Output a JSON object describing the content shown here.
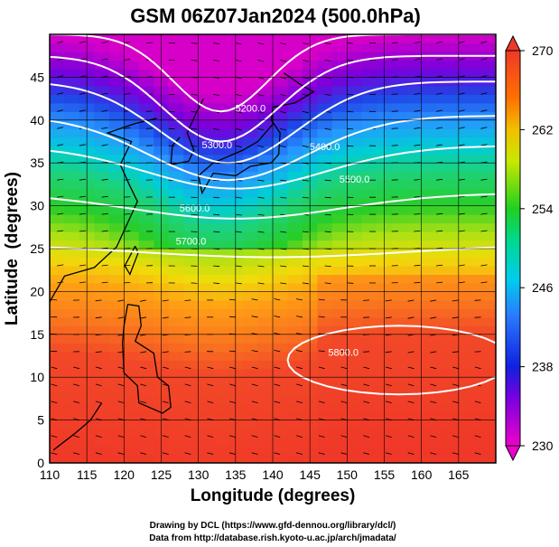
{
  "chart_data": {
    "type": "heatmap",
    "title": "GSM 06Z07Jan2024 (500.0hPa)",
    "xlabel": "Longitude (degrees)",
    "ylabel": "Latitude  (degrees)",
    "xlim": [
      110,
      170
    ],
    "ylim": [
      0,
      50
    ],
    "x_ticks": [
      "110",
      "115",
      "120",
      "125",
      "130",
      "135",
      "140",
      "145",
      "150",
      "155",
      "160",
      "165"
    ],
    "y_ticks": [
      "0",
      "5",
      "10",
      "15",
      "20",
      "25",
      "30",
      "35",
      "40",
      "45"
    ],
    "grid": true,
    "colorbar": {
      "placement": "right",
      "range": [
        230,
        270
      ],
      "ticks": [
        "230",
        "238",
        "246",
        "254",
        "262",
        "270"
      ]
    },
    "contour_labels": [
      "5200.0",
      "5300.0",
      "5400.0",
      "5500.0",
      "5600.0",
      "5700.0",
      "5800.0"
    ],
    "colors": {
      "purple": "#cc00cc",
      "blue": "#2040ff",
      "cyan": "#00d4e0",
      "green": "#30d020",
      "yellow": "#e8e800",
      "orange": "#ff8000",
      "red": "#f03030"
    }
  },
  "credits": {
    "line1": "Drawing by DCL (https://www.gfd-dennou.org/library/dcl/)",
    "line2": "Data from http://database.rish.kyoto-u.ac.jp/arch/jmadata/"
  }
}
